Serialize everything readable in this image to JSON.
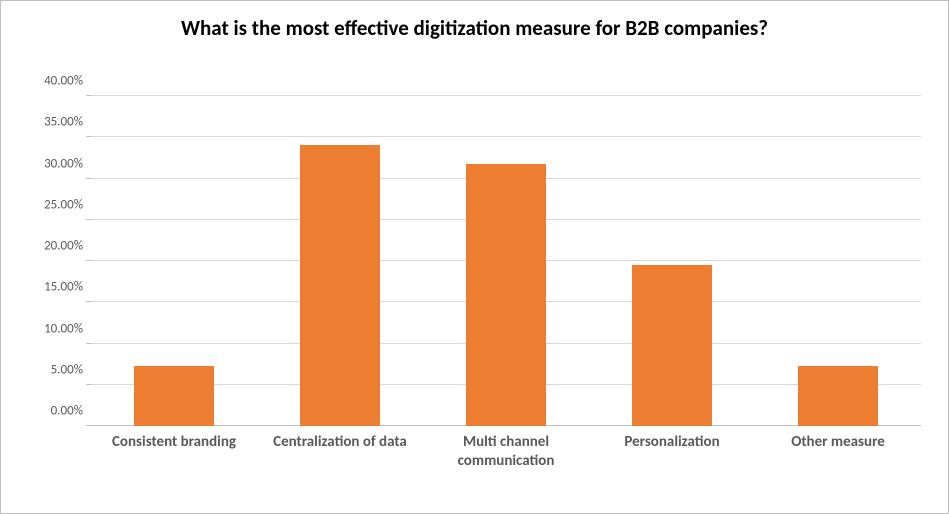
{
  "chart": {
    "type": "bar",
    "title": "What is the most effective digitization measure for B2B companies?",
    "title_fontsize": 21,
    "title_fontweight": "bold",
    "title_color": "#000000",
    "categories": [
      "Consistent branding",
      "Centralization of data",
      "Multi channel communication",
      "Personalization",
      "Other measure"
    ],
    "values": [
      7.3,
      34.1,
      31.7,
      19.5,
      7.3
    ],
    "bar_color": "#ed7d31",
    "bar_width_ratio": 0.48,
    "ylim": [
      0,
      40
    ],
    "ytick_step": 5,
    "ytick_labels": [
      "0.00%",
      "5.00%",
      "10.00%",
      "15.00%",
      "20.00%",
      "25.00%",
      "30.00%",
      "35.00%",
      "40.00%"
    ],
    "yaxis_label_fontsize": 13,
    "yaxis_label_color": "#595959",
    "xaxis_label_fontsize": 15,
    "xaxis_label_fontweight": "bold",
    "xaxis_label_color": "#595959",
    "grid_color": "#d9d9d9",
    "axis_color": "#bfbfbf",
    "background_color": "#ffffff",
    "border_color": "#bfbfbf"
  }
}
